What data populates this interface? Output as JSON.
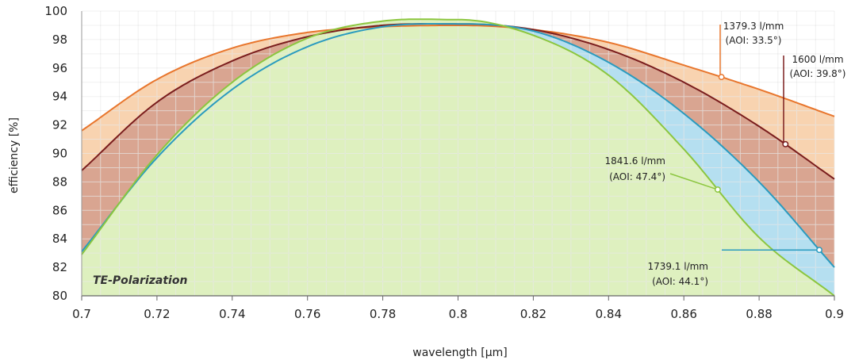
{
  "chart_data": {
    "type": "area",
    "xlabel": "wavelength [µm]",
    "ylabel": "efficiency [%]",
    "xlim": [
      0.7,
      0.9
    ],
    "ylim": [
      80,
      100
    ],
    "xticks": [
      "0.7",
      "0.72",
      "0.74",
      "0.76",
      "0.78",
      "0.8",
      "0.82",
      "0.84",
      "0.86",
      "0.88",
      "0.9"
    ],
    "yticks": [
      "80",
      "82",
      "84",
      "86",
      "88",
      "90",
      "92",
      "94",
      "96",
      "98",
      "100"
    ],
    "grid": true,
    "polarization_label": "TE-Polarization",
    "x": [
      0.7,
      0.72,
      0.74,
      0.76,
      0.78,
      0.8,
      0.82,
      0.84,
      0.86,
      0.88,
      0.9
    ],
    "series": [
      {
        "name": "1379.3 l/mm (AOI: 33.5°)",
        "label_line1": "1379.3 l/mm",
        "label_line2": "(AOI: 33.5°)",
        "color": "#e8762d",
        "fill": "#f8d3b0",
        "marker_x": 0.87,
        "values": [
          91.6,
          95.2,
          97.4,
          98.5,
          98.9,
          99.0,
          98.7,
          97.8,
          96.2,
          94.5,
          92.6
        ]
      },
      {
        "name": "1600 l/mm (AOI: 39.8°)",
        "label_line1": "1600 l/mm",
        "label_line2": "(AOI: 39.8°)",
        "color": "#7a1d1d",
        "fill": "#d9a591",
        "marker_x": 0.887,
        "values": [
          88.8,
          93.6,
          96.5,
          98.2,
          99.0,
          99.1,
          98.7,
          97.3,
          95.0,
          91.9,
          88.2
        ]
      },
      {
        "name": "1739.1 l/mm (AOI: 44.1°)",
        "label_line1": "1739.1 l/mm",
        "label_line2": "(AOI: 44.1°)",
        "color": "#2a9bbf",
        "fill": "#b5dff0",
        "marker_x": 0.896,
        "values": [
          83.1,
          89.7,
          94.5,
          97.5,
          98.9,
          99.1,
          98.6,
          96.4,
          92.8,
          88.0,
          82.0
        ]
      },
      {
        "name": "1841.6 l/mm (AOI: 47.4°)",
        "label_line1": "1841.6 l/mm",
        "label_line2": "(AOI: 47.4°)",
        "color": "#8cc63f",
        "fill": "#def0bf",
        "marker_x": 0.869,
        "values": [
          82.9,
          89.9,
          95.0,
          98.1,
          99.3,
          99.4,
          98.3,
          95.5,
          90.3,
          84.1,
          80.0
        ]
      }
    ]
  }
}
